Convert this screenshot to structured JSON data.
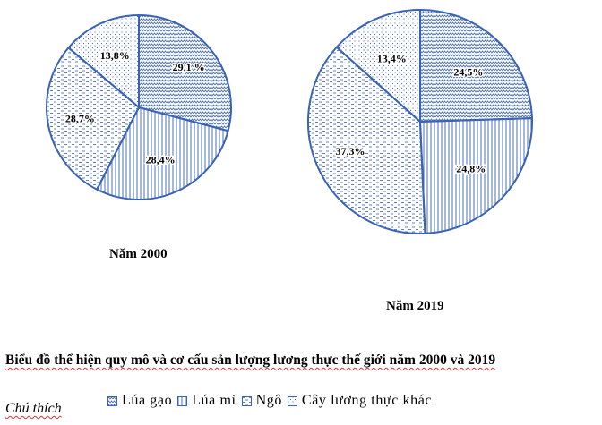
{
  "colors": {
    "outline": "#3a63b5",
    "pattern": "#4a6fb8",
    "text": "#000000"
  },
  "chart_data": [
    {
      "type": "pie",
      "title": "Năm 2000",
      "slices": [
        {
          "category": "Lúa gạo",
          "value": 29.1,
          "label": "29,1 %"
        },
        {
          "category": "Lúa mì",
          "value": 28.4,
          "label": "28,4%"
        },
        {
          "category": "Ngô",
          "value": 28.7,
          "label": "28,7%"
        },
        {
          "category": "Cây lương thực khác",
          "value": 13.8,
          "label": "13,8%"
        }
      ]
    },
    {
      "type": "pie",
      "title": "Năm 2019",
      "slices": [
        {
          "category": "Lúa gạo",
          "value": 24.5,
          "label": "24,5%"
        },
        {
          "category": "Lúa mì",
          "value": 24.8,
          "label": "24,8%"
        },
        {
          "category": "Ngô",
          "value": 37.3,
          "label": "37,3%"
        },
        {
          "category": "Cây lương thực khác",
          "value": 13.4,
          "label": "13,4%"
        }
      ]
    }
  ],
  "figure_title": "Biểu đồ thể hiện quy mô và cơ cấu sản lượng lương thực thế giới năm 2000 và 2019",
  "legend": {
    "label": "Chú thích",
    "items": [
      {
        "name": "Lúa gạo",
        "pattern": "zigzag"
      },
      {
        "name": "Lúa mì",
        "pattern": "vertical"
      },
      {
        "name": "Ngô",
        "pattern": "dashes"
      },
      {
        "name": "Cây lương thực khác",
        "pattern": "dots"
      }
    ]
  }
}
